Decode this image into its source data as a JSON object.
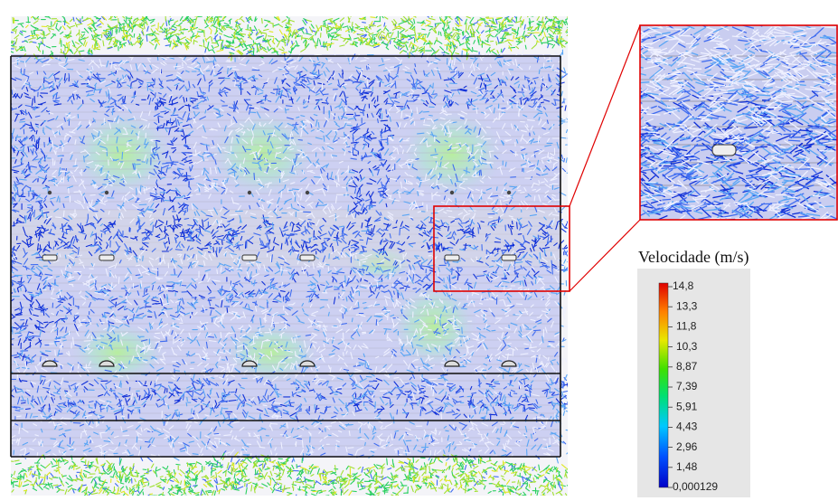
{
  "colorbar": {
    "title": "Velocidade (m/s)",
    "ticks": [
      "14,8",
      "13,3",
      "11,8",
      "10,3",
      "8,87",
      "7,39",
      "5,91",
      "4,43",
      "2,96",
      "1,48",
      "0,000129"
    ]
  }
}
